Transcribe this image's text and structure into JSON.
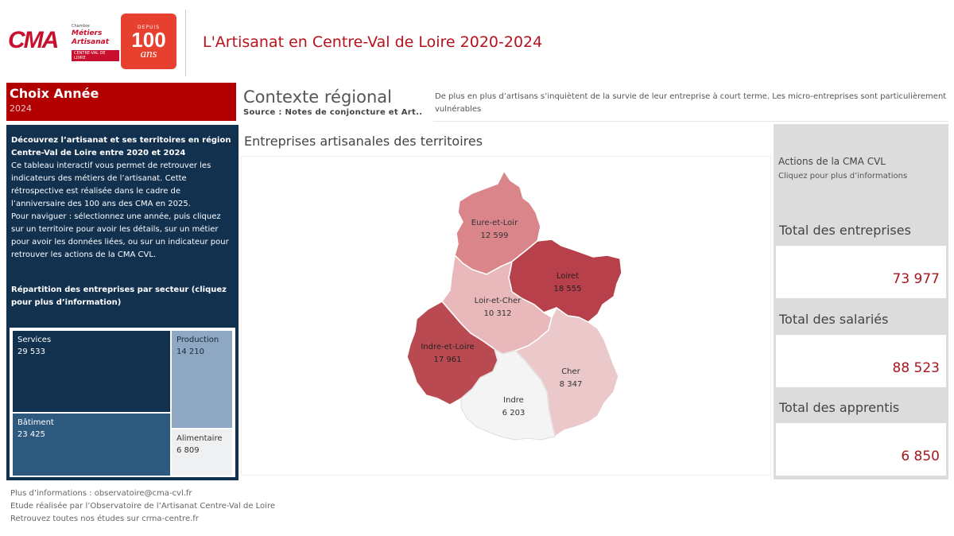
{
  "header": {
    "logo_cma": {
      "mark": "CMA",
      "line1": "Chambre",
      "line2": "Métiers",
      "line3": "Artisanat",
      "line4": "CENTRE-VAL DE LOIRE"
    },
    "logo_100": {
      "small": "DEPUIS",
      "big": "100",
      "ans": "ans"
    },
    "title": "L'Artisanat en Centre-Val de Loire 2020-2024"
  },
  "year_filter": {
    "label": "Choix Année",
    "value": "2024"
  },
  "intro": {
    "heading": "Découvrez l’artisanat et ses territoires en région Centre-Val de Loire entre 2020 et 2024",
    "paragraph1": "Ce tableau interactif vous permet de retrouver les indicateurs des métiers de l’artisanat. Cette rétrospective est réalisée dans le cadre de l’anniversaire des 100 ans des CMA en 2025.",
    "paragraph2": "Pour naviguer : sélectionnez une année, puis cliquez sur un territoire pour avoir les détails, sur un métier pour avoir les données liées, ou sur un indicateur pour retrouver les actions de la CMA CVL."
  },
  "treemap": {
    "title": "Répartition des entreprises par secteur (cliquez pour plus d’information)",
    "cells": [
      {
        "label": "Services",
        "value": "29 533"
      },
      {
        "label": "Bâtiment",
        "value": "23 425"
      },
      {
        "label": "Production",
        "value": "14 210"
      },
      {
        "label": "Alimentaire",
        "value": "6 809"
      }
    ]
  },
  "context": {
    "title": "Contexte régional",
    "source": "Source : Notes de conjoncture et Art..",
    "text": "De plus en plus d’artisans s’inquiètent de la survie de leur entreprise à court terme. Les micro-entreprises sont particulièrement vulnérables"
  },
  "map": {
    "title": "Entreprises artisanales des territoires",
    "territories": [
      {
        "name": "Eure-et-Loir",
        "value": "12 599",
        "color": "#d9858a"
      },
      {
        "name": "Loiret",
        "value": "18 555",
        "color": "#b8404a"
      },
      {
        "name": "Loir-et-Cher",
        "value": "10 312",
        "color": "#e8b8bb"
      },
      {
        "name": "Indre-et-Loire",
        "value": "17 961",
        "color": "#ba4a52"
      },
      {
        "name": "Cher",
        "value": "8 347",
        "color": "#ebc8ca"
      },
      {
        "name": "Indre",
        "value": "6 203",
        "color": "#f4f4f4"
      }
    ]
  },
  "right": {
    "actions_title": "Actions de la CMA CVL",
    "actions_sub": "Cliquez pour plus d’informations",
    "kpis": [
      {
        "label": "Total des entreprises",
        "value": "73 977"
      },
      {
        "label": "Total des salariés",
        "value": "88 523"
      },
      {
        "label": "Total des apprentis",
        "value": "6 850"
      }
    ],
    "accent": "#a6171f"
  },
  "footer": {
    "line1": "Plus d’informations : observatoire@cma-cvl.fr",
    "line2": "Etude réalisée par l’Observatoire de l’Artisanat Centre-Val de Loire",
    "line3": "Retrouvez toutes nos études sur crma-centre.fr"
  }
}
